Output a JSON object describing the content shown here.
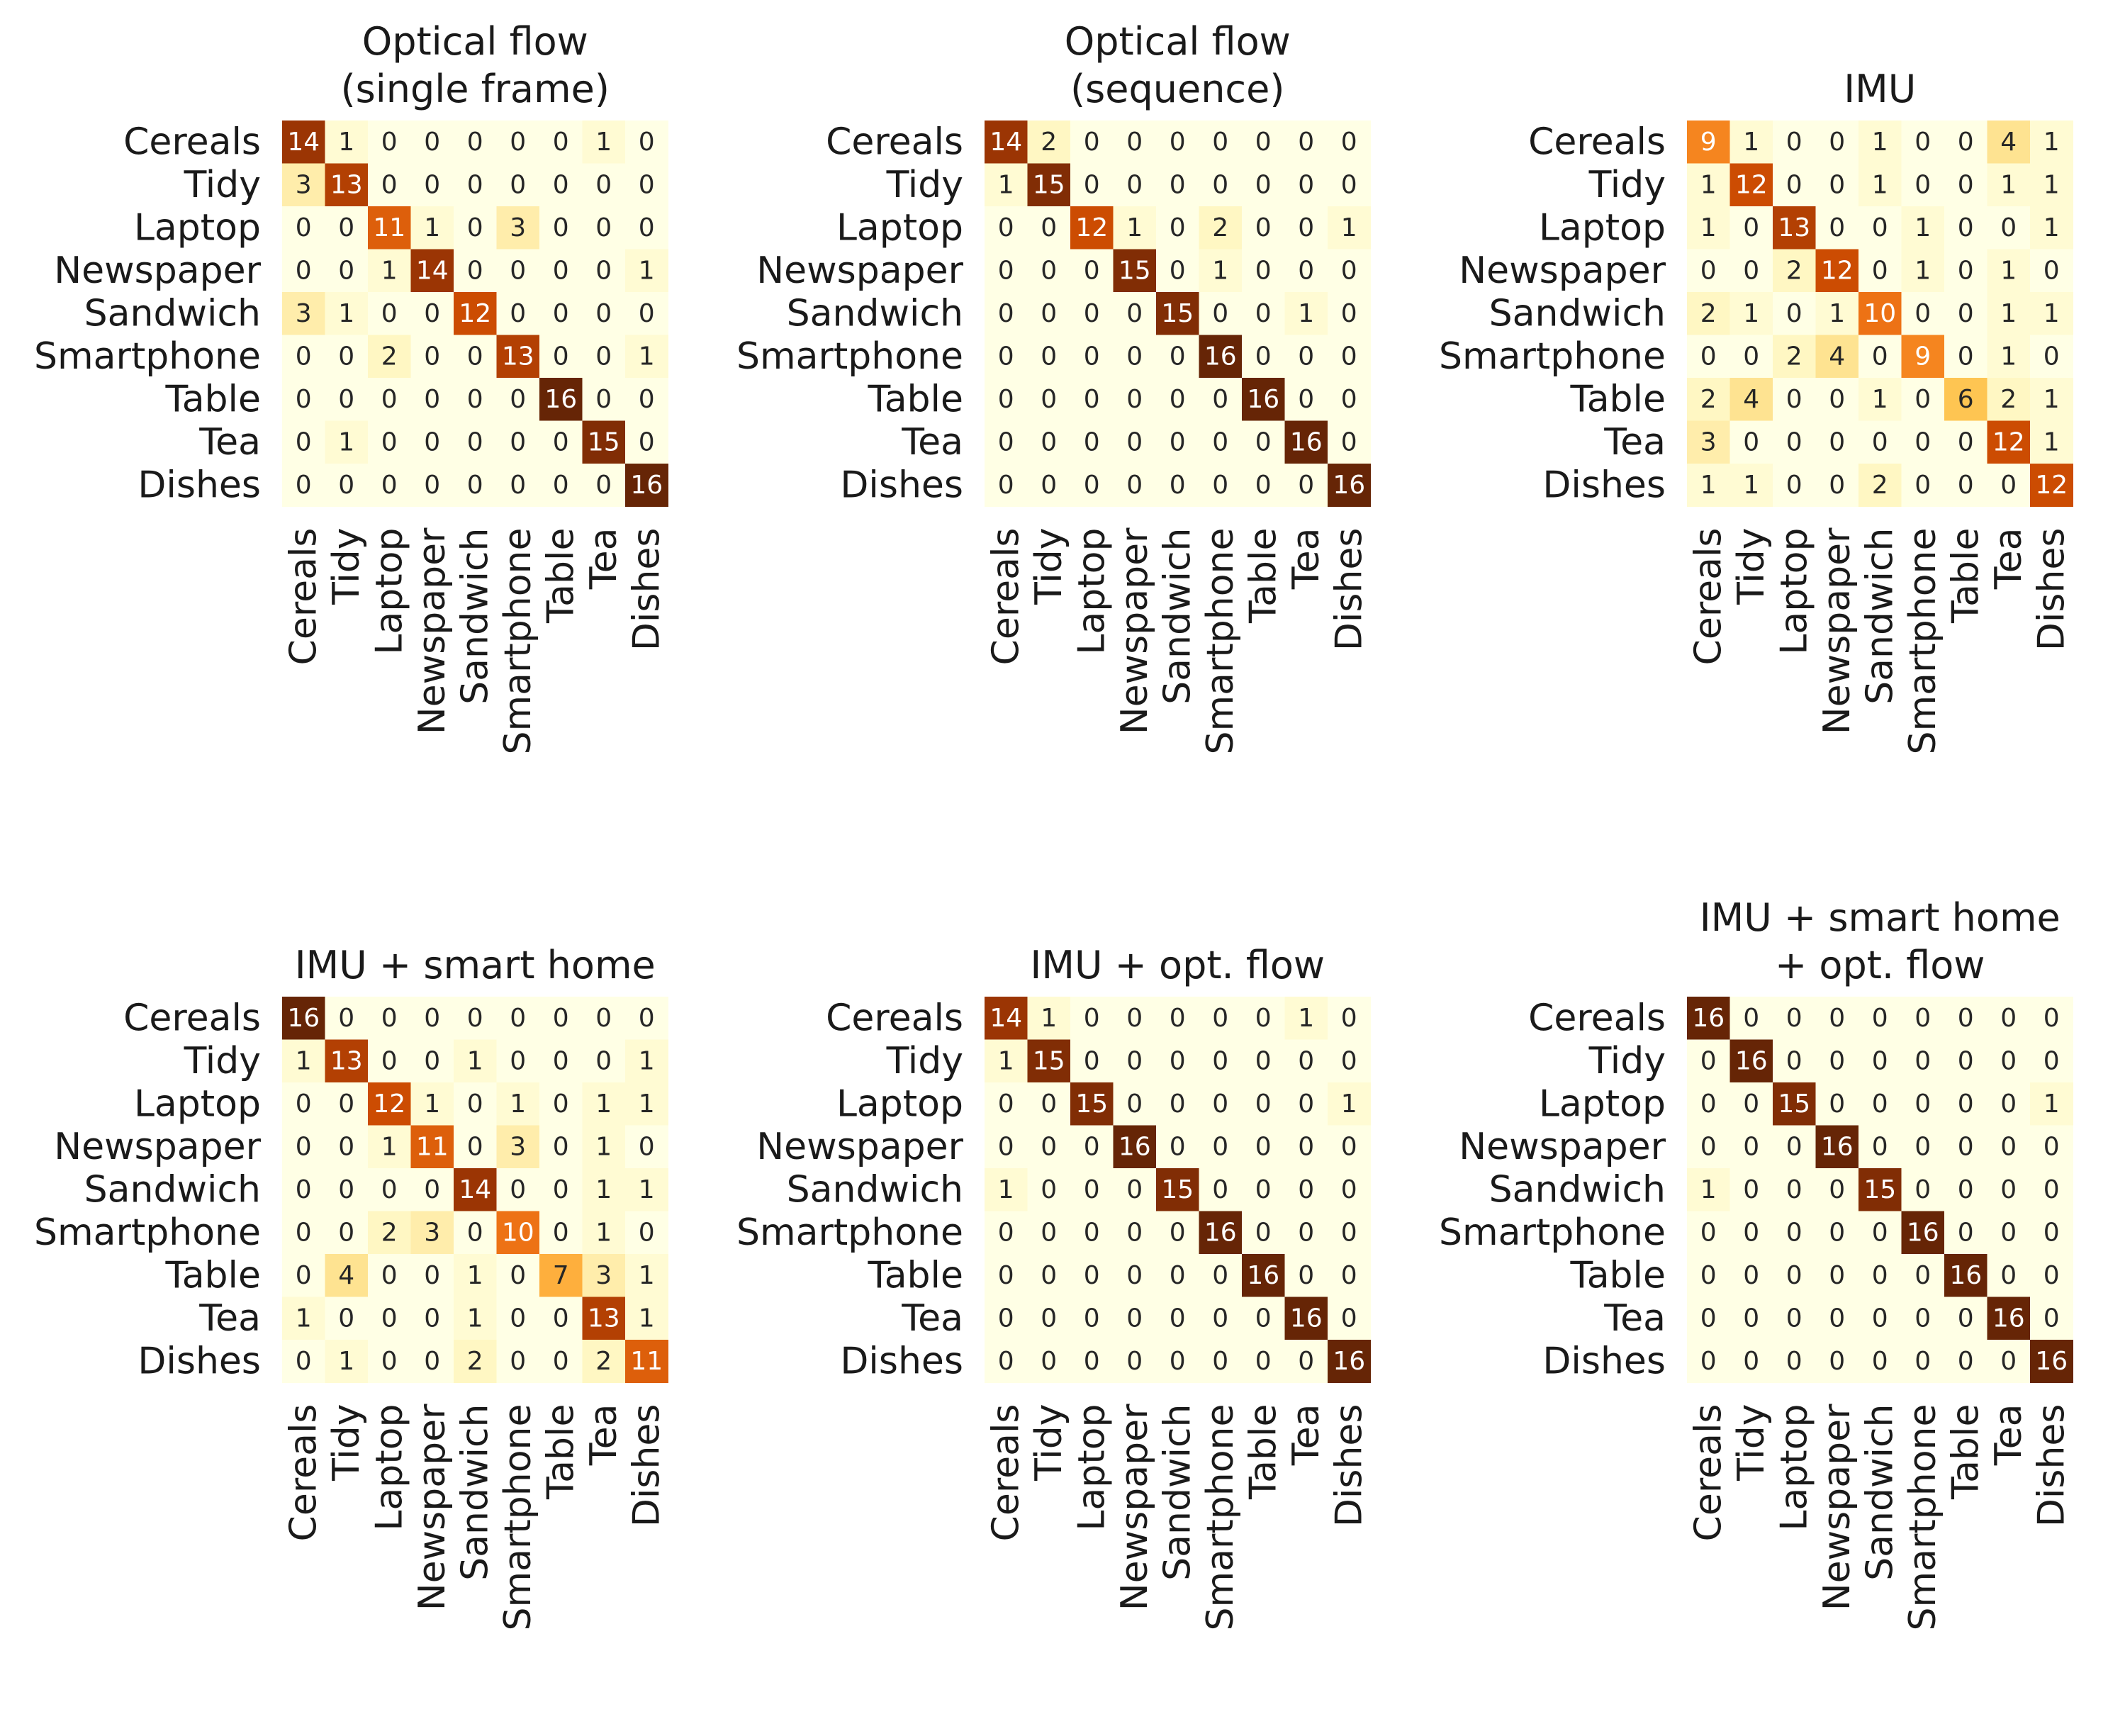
{
  "chart_data": [
    {
      "type": "heatmap",
      "title": [
        "Optical flow",
        "(single frame)"
      ],
      "row_labels": [
        "Cereals",
        "Tidy",
        "Laptop",
        "Newspaper",
        "Sandwich",
        "Smartphone",
        "Table",
        "Tea",
        "Dishes"
      ],
      "col_labels": [
        "Cereals",
        "Tidy",
        "Laptop",
        "Newspaper",
        "Sandwich",
        "Smartphone",
        "Table",
        "Tea",
        "Dishes"
      ],
      "vmin": 0,
      "vmax": 16,
      "colormap": "YlOrBr",
      "values": [
        [
          14,
          1,
          0,
          0,
          0,
          0,
          0,
          1,
          0
        ],
        [
          3,
          13,
          0,
          0,
          0,
          0,
          0,
          0,
          0
        ],
        [
          0,
          0,
          11,
          1,
          0,
          3,
          0,
          0,
          0
        ],
        [
          0,
          0,
          1,
          14,
          0,
          0,
          0,
          0,
          1
        ],
        [
          3,
          1,
          0,
          0,
          12,
          0,
          0,
          0,
          0
        ],
        [
          0,
          0,
          2,
          0,
          0,
          13,
          0,
          0,
          1
        ],
        [
          0,
          0,
          0,
          0,
          0,
          0,
          16,
          0,
          0
        ],
        [
          0,
          1,
          0,
          0,
          0,
          0,
          0,
          15,
          0
        ],
        [
          0,
          0,
          0,
          0,
          0,
          0,
          0,
          0,
          16
        ]
      ]
    },
    {
      "type": "heatmap",
      "title": [
        "Optical flow",
        "(sequence)"
      ],
      "row_labels": [
        "Cereals",
        "Tidy",
        "Laptop",
        "Newspaper",
        "Sandwich",
        "Smartphone",
        "Table",
        "Tea",
        "Dishes"
      ],
      "col_labels": [
        "Cereals",
        "Tidy",
        "Laptop",
        "Newspaper",
        "Sandwich",
        "Smartphone",
        "Table",
        "Tea",
        "Dishes"
      ],
      "vmin": 0,
      "vmax": 16,
      "colormap": "YlOrBr",
      "values": [
        [
          14,
          2,
          0,
          0,
          0,
          0,
          0,
          0,
          0
        ],
        [
          1,
          15,
          0,
          0,
          0,
          0,
          0,
          0,
          0
        ],
        [
          0,
          0,
          12,
          1,
          0,
          2,
          0,
          0,
          1
        ],
        [
          0,
          0,
          0,
          15,
          0,
          1,
          0,
          0,
          0
        ],
        [
          0,
          0,
          0,
          0,
          15,
          0,
          0,
          1,
          0
        ],
        [
          0,
          0,
          0,
          0,
          0,
          16,
          0,
          0,
          0
        ],
        [
          0,
          0,
          0,
          0,
          0,
          0,
          16,
          0,
          0
        ],
        [
          0,
          0,
          0,
          0,
          0,
          0,
          0,
          16,
          0
        ],
        [
          0,
          0,
          0,
          0,
          0,
          0,
          0,
          0,
          16
        ]
      ]
    },
    {
      "type": "heatmap",
      "title": [
        "IMU"
      ],
      "row_labels": [
        "Cereals",
        "Tidy",
        "Laptop",
        "Newspaper",
        "Sandwich",
        "Smartphone",
        "Table",
        "Tea",
        "Dishes"
      ],
      "col_labels": [
        "Cereals",
        "Tidy",
        "Laptop",
        "Newspaper",
        "Sandwich",
        "Smartphone",
        "Table",
        "Tea",
        "Dishes"
      ],
      "vmin": 0,
      "vmax": 16,
      "colormap": "YlOrBr",
      "values": [
        [
          9,
          1,
          0,
          0,
          1,
          0,
          0,
          4,
          1
        ],
        [
          1,
          12,
          0,
          0,
          1,
          0,
          0,
          1,
          1
        ],
        [
          1,
          0,
          13,
          0,
          0,
          1,
          0,
          0,
          1
        ],
        [
          0,
          0,
          2,
          12,
          0,
          1,
          0,
          1,
          0
        ],
        [
          2,
          1,
          0,
          1,
          10,
          0,
          0,
          1,
          1
        ],
        [
          0,
          0,
          2,
          4,
          0,
          9,
          0,
          1,
          0
        ],
        [
          2,
          4,
          0,
          0,
          1,
          0,
          6,
          2,
          1
        ],
        [
          3,
          0,
          0,
          0,
          0,
          0,
          0,
          12,
          1
        ],
        [
          1,
          1,
          0,
          0,
          2,
          0,
          0,
          0,
          12
        ]
      ]
    },
    {
      "type": "heatmap",
      "title": [
        "IMU + smart home"
      ],
      "row_labels": [
        "Cereals",
        "Tidy",
        "Laptop",
        "Newspaper",
        "Sandwich",
        "Smartphone",
        "Table",
        "Tea",
        "Dishes"
      ],
      "col_labels": [
        "Cereals",
        "Tidy",
        "Laptop",
        "Newspaper",
        "Sandwich",
        "Smartphone",
        "Table",
        "Tea",
        "Dishes"
      ],
      "vmin": 0,
      "vmax": 16,
      "colormap": "YlOrBr",
      "values": [
        [
          16,
          0,
          0,
          0,
          0,
          0,
          0,
          0,
          0
        ],
        [
          1,
          13,
          0,
          0,
          1,
          0,
          0,
          0,
          1
        ],
        [
          0,
          0,
          12,
          1,
          0,
          1,
          0,
          1,
          1
        ],
        [
          0,
          0,
          1,
          11,
          0,
          3,
          0,
          1,
          0
        ],
        [
          0,
          0,
          0,
          0,
          14,
          0,
          0,
          1,
          1
        ],
        [
          0,
          0,
          2,
          3,
          0,
          10,
          0,
          1,
          0
        ],
        [
          0,
          4,
          0,
          0,
          1,
          0,
          7,
          3,
          1
        ],
        [
          1,
          0,
          0,
          0,
          1,
          0,
          0,
          13,
          1
        ],
        [
          0,
          1,
          0,
          0,
          2,
          0,
          0,
          2,
          11
        ]
      ]
    },
    {
      "type": "heatmap",
      "title": [
        "IMU + opt. flow"
      ],
      "row_labels": [
        "Cereals",
        "Tidy",
        "Laptop",
        "Newspaper",
        "Sandwich",
        "Smartphone",
        "Table",
        "Tea",
        "Dishes"
      ],
      "col_labels": [
        "Cereals",
        "Tidy",
        "Laptop",
        "Newspaper",
        "Sandwich",
        "Smartphone",
        "Table",
        "Tea",
        "Dishes"
      ],
      "vmin": 0,
      "vmax": 16,
      "colormap": "YlOrBr",
      "values": [
        [
          14,
          1,
          0,
          0,
          0,
          0,
          0,
          1,
          0
        ],
        [
          1,
          15,
          0,
          0,
          0,
          0,
          0,
          0,
          0
        ],
        [
          0,
          0,
          15,
          0,
          0,
          0,
          0,
          0,
          1
        ],
        [
          0,
          0,
          0,
          16,
          0,
          0,
          0,
          0,
          0
        ],
        [
          1,
          0,
          0,
          0,
          15,
          0,
          0,
          0,
          0
        ],
        [
          0,
          0,
          0,
          0,
          0,
          16,
          0,
          0,
          0
        ],
        [
          0,
          0,
          0,
          0,
          0,
          0,
          16,
          0,
          0
        ],
        [
          0,
          0,
          0,
          0,
          0,
          0,
          0,
          16,
          0
        ],
        [
          0,
          0,
          0,
          0,
          0,
          0,
          0,
          0,
          16
        ]
      ]
    },
    {
      "type": "heatmap",
      "title": [
        "IMU + smart home",
        "+ opt. flow"
      ],
      "row_labels": [
        "Cereals",
        "Tidy",
        "Laptop",
        "Newspaper",
        "Sandwich",
        "Smartphone",
        "Table",
        "Tea",
        "Dishes"
      ],
      "col_labels": [
        "Cereals",
        "Tidy",
        "Laptop",
        "Newspaper",
        "Sandwich",
        "Smartphone",
        "Table",
        "Tea",
        "Dishes"
      ],
      "vmin": 0,
      "vmax": 16,
      "colormap": "YlOrBr",
      "values": [
        [
          16,
          0,
          0,
          0,
          0,
          0,
          0,
          0,
          0
        ],
        [
          0,
          16,
          0,
          0,
          0,
          0,
          0,
          0,
          0
        ],
        [
          0,
          0,
          15,
          0,
          0,
          0,
          0,
          0,
          1
        ],
        [
          0,
          0,
          0,
          16,
          0,
          0,
          0,
          0,
          0
        ],
        [
          1,
          0,
          0,
          0,
          15,
          0,
          0,
          0,
          0
        ],
        [
          0,
          0,
          0,
          0,
          0,
          16,
          0,
          0,
          0
        ],
        [
          0,
          0,
          0,
          0,
          0,
          0,
          16,
          0,
          0
        ],
        [
          0,
          0,
          0,
          0,
          0,
          0,
          0,
          16,
          0
        ],
        [
          0,
          0,
          0,
          0,
          0,
          0,
          0,
          0,
          16
        ]
      ]
    }
  ],
  "colors": {
    "text": "#1a1a1a",
    "cell_text_light": "#ffffff",
    "cell_text_dark": "#262626"
  }
}
